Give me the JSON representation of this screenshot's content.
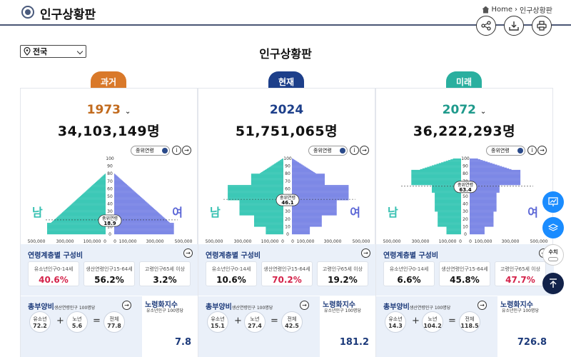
{
  "header": {
    "title": "인구상황판",
    "breadcrumb_home": "Home",
    "breadcrumb_sep": "›",
    "breadcrumb_page": "인구상황판"
  },
  "region": {
    "value": "전국"
  },
  "main_title": "인구상황판",
  "toggle_label": "중위연령",
  "labels": {
    "male": "남",
    "female": "여",
    "median": "중위연령",
    "struct_title": "연령계층별 구성비",
    "young": "유소년인구0-14세",
    "working": "생산연령인구15-64세",
    "old": "고령인구65세 이상",
    "dep_title": "총부양비",
    "dep_sub": "생산연령인구 100명당",
    "c_young": "유소년",
    "c_old": "노년",
    "c_total": "전체",
    "aging_title": "노령화지수",
    "aging_sub": "유소년인구 100명당"
  },
  "axis": {
    "age_ticks": [
      "100",
      "90",
      "80",
      "70",
      "60",
      "50",
      "40",
      "30",
      "20",
      "10",
      "0"
    ],
    "x_ticks": [
      "500,000",
      "300,000",
      "100,000",
      "0",
      "0",
      "100,000",
      "300,000",
      "500,000"
    ]
  },
  "panels": [
    {
      "tab": "과거",
      "tab_color": "#d9792a",
      "year": "1973",
      "year_color": "#c26b1e",
      "total": "34,103,149명",
      "median": "18.9",
      "young": "40.6%",
      "working": "56.2%",
      "old": "3.2%",
      "dep_young": "72.2",
      "dep_old": "5.6",
      "dep_total": "77.8",
      "aging": "7.8",
      "hl": "young"
    },
    {
      "tab": "현재",
      "tab_color": "#1d3f8a",
      "year": "2024",
      "year_color": "#1d3f8a",
      "total": "51,751,065명",
      "median": "46.1",
      "young": "10.6%",
      "working": "70.2%",
      "old": "19.2%",
      "dep_young": "15.1",
      "dep_old": "27.4",
      "dep_total": "42.5",
      "aging": "181.2",
      "hl": "working"
    },
    {
      "tab": "미래",
      "tab_color": "#2aaf9f",
      "year": "2072",
      "year_color": "#1f9a8c",
      "total": "36,222,293명",
      "median": "63.4",
      "young": "6.6%",
      "working": "45.8%",
      "old": "47.7%",
      "dep_young": "14.3",
      "dep_old": "104.2",
      "dep_total": "118.5",
      "aging": "726.8",
      "hl": "old"
    }
  ],
  "side": {
    "data_label": "수치"
  },
  "colors": {
    "male": "#3cc8b6",
    "female": "#7d88e6",
    "accent": "#1d3f8a"
  }
}
